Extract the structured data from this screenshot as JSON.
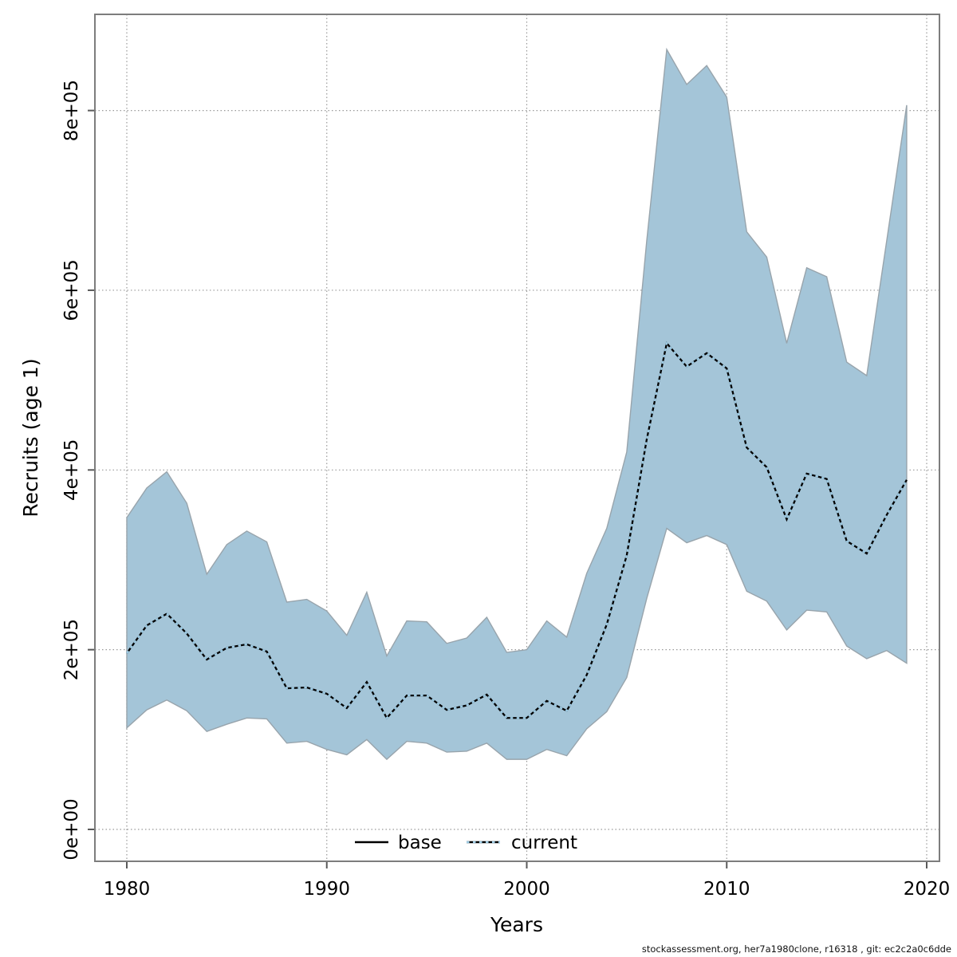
{
  "figure": {
    "footer": "stockassessment.org, her7a1980clone, r16318 , git: ec2c2a0c6dde"
  },
  "colors": {
    "band_fill": "#a4c5d8",
    "band_border": "#98a4ac",
    "current_blue": "#9dcbe4",
    "base_black": "#000000",
    "grid": "#999999",
    "frame": "#7d7d7d",
    "tick": "#5a5a5a"
  },
  "chart_data": {
    "type": "line",
    "title": "",
    "xlabel": "Years",
    "ylabel": "Recruits (age 1)",
    "grid": true,
    "x_ticks": [
      1980,
      1990,
      2000,
      2010,
      2020
    ],
    "y_tick_labels": [
      "0e+00",
      "2e+05",
      "4e+05",
      "6e+05",
      "8e+05"
    ],
    "y_tick_values": [
      0,
      200000,
      400000,
      600000,
      800000
    ],
    "xlim": [
      1978.4,
      2020.6
    ],
    "ylim": [
      -35000,
      907000
    ],
    "x": [
      1980,
      1981,
      1982,
      1983,
      1984,
      1985,
      1986,
      1987,
      1988,
      1989,
      1990,
      1991,
      1992,
      1993,
      1994,
      1995,
      1996,
      1997,
      1998,
      1999,
      2000,
      2001,
      2002,
      2003,
      2004,
      2005,
      2006,
      2007,
      2008,
      2009,
      2010,
      2011,
      2012,
      2013,
      2014,
      2015,
      2016,
      2017,
      2018,
      2019
    ],
    "band": {
      "name": "confidence-band",
      "upper": [
        347000,
        380000,
        398000,
        363000,
        284000,
        317000,
        332000,
        320000,
        253000,
        256000,
        243000,
        216000,
        264000,
        193000,
        232000,
        231000,
        207000,
        213000,
        236000,
        197000,
        200000,
        232000,
        214000,
        285000,
        335000,
        420000,
        655000,
        868000,
        829000,
        850000,
        815000,
        665000,
        637000,
        541000,
        625000,
        615000,
        520000,
        505000,
        655000,
        806000
      ],
      "lower": [
        113000,
        133000,
        144000,
        132000,
        109000,
        117000,
        124000,
        123000,
        96000,
        98000,
        89000,
        83000,
        100000,
        78000,
        98000,
        96000,
        86000,
        87000,
        96000,
        78000,
        78000,
        89000,
        82000,
        112000,
        131000,
        169000,
        257000,
        335000,
        319000,
        327000,
        317000,
        265000,
        254000,
        222000,
        244000,
        242000,
        204000,
        190000,
        199000,
        185000
      ]
    },
    "series": [
      {
        "name": "base",
        "line": "solid",
        "color": "#000000",
        "values": [
          196000,
          227000,
          240000,
          218000,
          189000,
          202000,
          206000,
          198000,
          157000,
          158000,
          151000,
          135000,
          164000,
          124000,
          149000,
          149000,
          133000,
          138000,
          150000,
          124000,
          124000,
          143000,
          132000,
          172000,
          228000,
          305000,
          434000,
          541000,
          515000,
          530000,
          513000,
          425000,
          403000,
          345000,
          396000,
          390000,
          321000,
          307000,
          350000,
          389000
        ]
      },
      {
        "name": "current",
        "line": "dotted",
        "color": "#9dcbe4",
        "values": [
          196000,
          227000,
          240000,
          218000,
          189000,
          202000,
          206000,
          198000,
          157000,
          158000,
          151000,
          135000,
          164000,
          124000,
          149000,
          149000,
          133000,
          138000,
          150000,
          124000,
          124000,
          143000,
          132000,
          172000,
          228000,
          305000,
          434000,
          541000,
          515000,
          530000,
          513000,
          425000,
          403000,
          345000,
          396000,
          390000,
          321000,
          307000,
          350000,
          389000
        ]
      }
    ],
    "legend": {
      "position": "bottom-center-inside",
      "items": [
        {
          "label": "base"
        },
        {
          "label": "current"
        }
      ]
    }
  }
}
